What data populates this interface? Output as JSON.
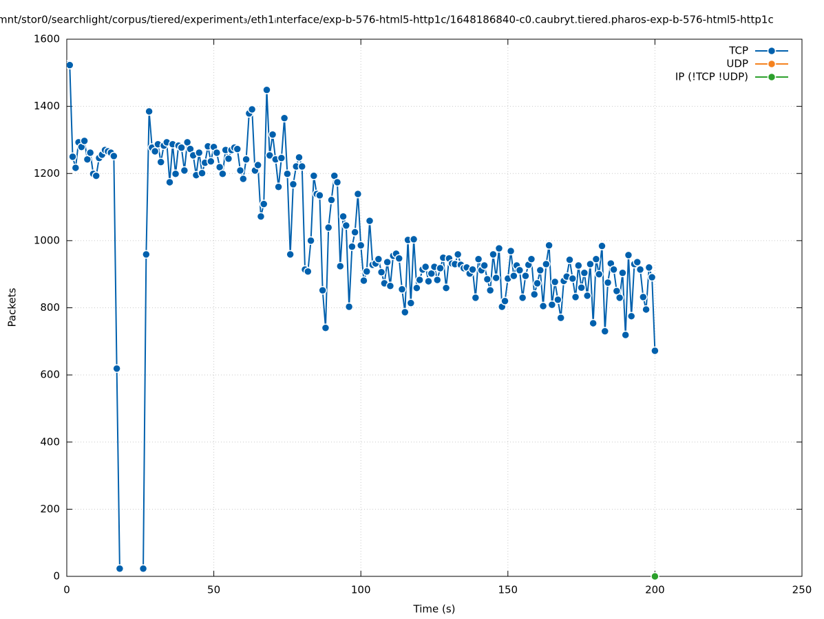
{
  "chart_data": {
    "type": "line",
    "title": "mnt/stor0/searchlight/corpus/tiered/experiment₃/eth1ᵢnterface/exp-b-576-html5-http1c/1648186840-c0.caubryt.tiered.pharos-exp-b-576-html5-http1c",
    "x_label": "Time (s)",
    "y_label": "Packets",
    "xlim": [
      0,
      250
    ],
    "ylim": [
      0,
      1600
    ],
    "xticks": [
      0,
      50,
      100,
      150,
      200,
      250
    ],
    "yticks": [
      0,
      200,
      400,
      600,
      800,
      1000,
      1200,
      1400,
      1600
    ],
    "grid": true,
    "legend": "top-right",
    "series": [
      {
        "name": "TCP",
        "color": "#0060ad",
        "x": [
          0,
          1,
          2,
          3,
          4,
          5,
          6,
          7,
          8,
          9,
          10,
          11,
          12,
          13,
          14,
          15,
          16,
          17,
          18,
          19,
          20,
          21,
          22,
          23,
          24,
          25,
          26,
          27,
          28,
          29,
          30,
          31,
          32,
          33,
          34,
          35,
          36,
          37,
          38,
          39,
          40,
          41,
          42,
          43,
          44,
          45,
          46,
          47,
          48,
          49,
          50,
          51,
          52,
          53,
          54,
          55,
          56,
          57,
          58,
          59,
          60,
          61,
          62,
          63,
          64,
          65,
          66,
          67,
          68,
          69,
          70,
          71,
          72,
          73,
          74,
          75,
          76,
          77,
          78,
          79,
          80,
          81,
          82,
          83,
          84,
          85,
          86,
          87,
          88,
          89,
          90,
          91,
          92,
          93,
          94,
          95,
          96,
          97,
          98,
          99,
          100,
          101,
          102,
          103,
          104,
          105,
          106,
          107,
          108,
          109,
          110,
          111,
          112,
          113,
          114,
          115,
          116,
          117,
          118,
          119,
          120,
          121,
          122,
          123,
          124,
          125,
          126,
          127,
          128,
          129,
          130,
          131,
          132,
          133,
          134,
          135,
          136,
          137,
          138,
          139,
          140,
          141,
          142,
          143,
          144,
          145,
          146,
          147,
          148,
          149,
          150,
          151,
          152,
          153,
          154,
          155,
          156,
          157,
          158,
          159,
          160,
          161,
          162,
          163,
          164,
          165,
          166,
          167,
          168,
          169,
          170,
          171,
          172,
          173,
          174,
          175,
          176,
          177,
          178,
          179,
          180,
          181,
          182,
          183,
          184,
          185,
          186,
          187,
          188,
          189,
          190,
          191,
          192,
          193,
          194,
          195,
          196,
          197,
          198,
          199,
          200
        ],
        "values": [
          1525,
          1523,
          1250,
          1217,
          1293,
          1279,
          1297,
          1242,
          1262,
          1199,
          1193,
          1246,
          1256,
          1270,
          1266,
          1262,
          1252,
          619,
          23,
          null,
          null,
          null,
          null,
          null,
          null,
          null,
          23,
          959,
          1385,
          1277,
          1266,
          1287,
          1234,
          1283,
          1293,
          1174,
          1287,
          1199,
          1283,
          1277,
          1209,
          1293,
          1273,
          1254,
          1195,
          1262,
          1201,
          1232,
          1281,
          1236,
          1279,
          1262,
          1219,
          1199,
          1270,
          1244,
          1270,
          1277,
          1273,
          1209,
          1184,
          1242,
          1379,
          1391,
          1209,
          1225,
          1072,
          1109,
          1449,
          1254,
          1316,
          1242,
          1160,
          1246,
          1365,
          1199,
          959,
          1168,
          1221,
          1248,
          1221,
          914,
          908,
          1000,
          1193,
          1139,
          1135,
          852,
          740,
          1039,
          1121,
          1193,
          1174,
          924,
          1072,
          1045,
          803,
          982,
          1025,
          1139,
          986,
          881,
          908,
          1059,
          928,
          932,
          945,
          906,
          873,
          936,
          865,
          955,
          961,
          947,
          855,
          787,
          1002,
          814,
          1004,
          859,
          883,
          914,
          922,
          879,
          902,
          922,
          883,
          918,
          949,
          859,
          947,
          932,
          930,
          959,
          928,
          918,
          920,
          902,
          914,
          830,
          945,
          912,
          926,
          885,
          852,
          959,
          889,
          977,
          803,
          820,
          887,
          969,
          895,
          926,
          912,
          830,
          895,
          928,
          945,
          840,
          873,
          912,
          805,
          930,
          986,
          809,
          877,
          824,
          770,
          880,
          893,
          943,
          887,
          832,
          926,
          860,
          904,
          836,
          930,
          754,
          945,
          900,
          984,
          730,
          875,
          932,
          914,
          850,
          830,
          904,
          719,
          957,
          775,
          930,
          936,
          914,
          832,
          795,
          920,
          891,
          672
        ]
      },
      {
        "name": "UDP",
        "color": "#f5821f",
        "x": [],
        "values": []
      },
      {
        "name": "IP (!TCP  !UDP)",
        "color": "#2ca02c",
        "x": [
          200
        ],
        "values": [
          0
        ]
      }
    ]
  }
}
